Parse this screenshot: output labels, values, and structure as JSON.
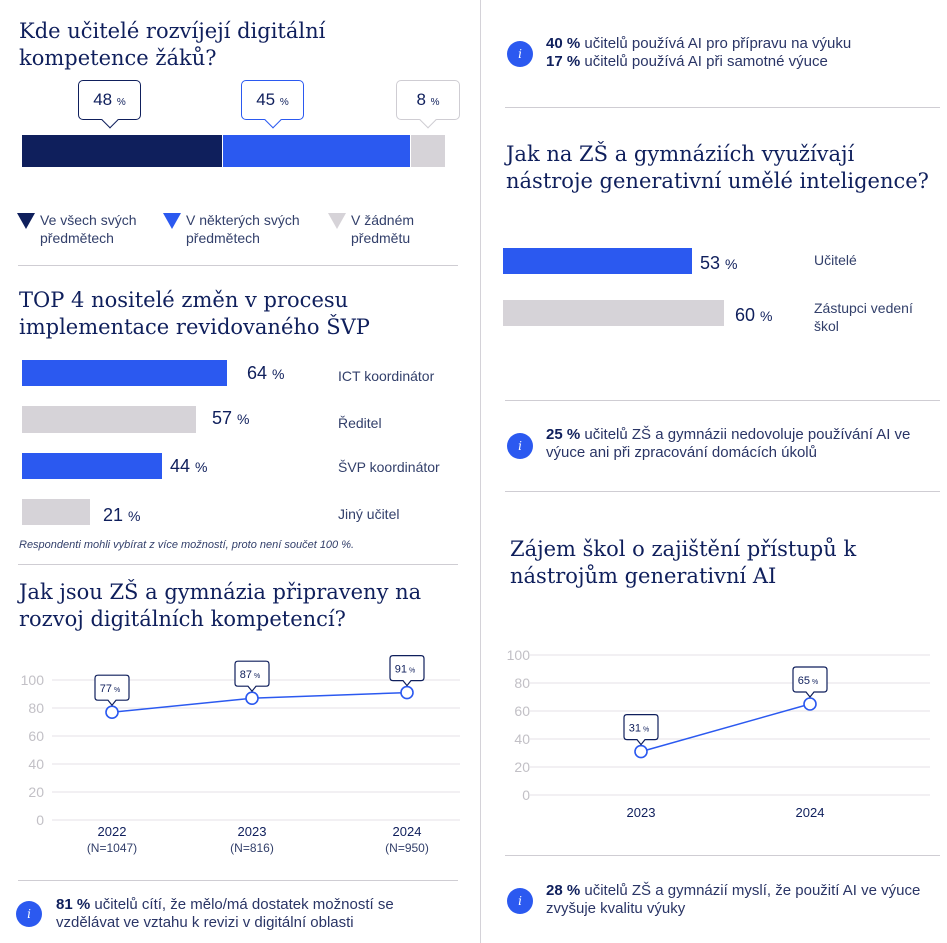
{
  "colors": {
    "navy": "#0f1f5c",
    "blue": "#2b59f0",
    "grey": "#d6d3d8",
    "axis": "#c8c6cc"
  },
  "s1": {
    "title": "Kde  učitelé rozvíjejí digitální kompetence žáků?",
    "values": [
      "48",
      "45",
      "8"
    ],
    "unit": "%",
    "legend": [
      "Ve všech svých předmětech",
      "V některých svých předmětech",
      "V žádném předmětu"
    ]
  },
  "s2": {
    "title": "TOP 4 nositelé změn v procesu implementace revidovaného ŠVP",
    "values": [
      "64",
      "57",
      "44",
      "21"
    ],
    "unit": "%",
    "labels": [
      "ICT koordinátor",
      "Ředitel",
      "ŠVP koordinátor",
      "Jiný učitel"
    ],
    "note": "Respondenti mohli vybírat z více možností, proto není součet 100 %."
  },
  "s3": {
    "title": "Jak jsou ZŠ a gymnázia připraveny na rozvoj digitálních kompetencí?",
    "yticks": [
      "100",
      "80",
      "60",
      "40",
      "20",
      "0"
    ],
    "years": [
      "2022",
      "2023",
      "2024"
    ],
    "ns": [
      "(N=1047)",
      "(N=816)",
      "(N=950)"
    ],
    "values": [
      "77",
      "87",
      "91"
    ],
    "unit": "%"
  },
  "info1": {
    "bold": "81 %",
    "text": " učitelů cítí, že mělo/má dostatek možností se vzdělávat ve vztahu k revizi v digitální oblasti"
  },
  "info2": {
    "line1_bold": "40 %",
    "line1": " učitelů používá AI pro přípravu na výuku",
    "line2_bold": "17 %",
    "line2": " učitelů používá AI při samotné výuce"
  },
  "s4": {
    "title": "Jak na ZŠ a gymnáziích využívají nástroje generativní umělé inteligence?",
    "values": [
      "53",
      "60"
    ],
    "unit": "%",
    "labels": [
      "Učitelé",
      "Zástupci vedení škol"
    ]
  },
  "info3": {
    "bold": "25 %",
    "text": " učitelů ZŠ a gymnázii nedovoluje používání AI ve výuce ani při zpracování domácích úkolů"
  },
  "s5": {
    "title": "Zájem škol o zajištění přístupů k nástrojům generativní AI",
    "yticks": [
      "100",
      "80",
      "60",
      "40",
      "20",
      "0"
    ],
    "years": [
      "2023",
      "2024"
    ],
    "values": [
      "31",
      "65"
    ],
    "unit": "%"
  },
  "info4": {
    "bold": "28 %",
    "text": " učitelů ZŠ a gymnázií myslí, že použití AI ve výuce zvyšuje kvalitu výuky"
  },
  "chart_data": [
    {
      "type": "bar",
      "title": "Kde  učitelé rozvíjejí digitální kompetence žáků?",
      "categories": [
        "Ve všech svých předmětech",
        "V některých svých předmětech",
        "V žádném předmětu"
      ],
      "values": [
        48,
        45,
        8
      ],
      "stacked": true
    },
    {
      "type": "bar",
      "title": "TOP 4 nositelé změn v procesu implementace revidovaného ŠVP",
      "categories": [
        "ICT koordinátor",
        "Ředitel",
        "ŠVP koordinátor",
        "Jiný učitel"
      ],
      "values": [
        64,
        57,
        44,
        21
      ],
      "orientation": "horizontal"
    },
    {
      "type": "line",
      "title": "Jak jsou ZŠ a gymnázia připraveny na rozvoj digitálních kompetencí?",
      "x": [
        "2022",
        "2023",
        "2024"
      ],
      "values": [
        77,
        87,
        91
      ],
      "ylim": [
        0,
        100
      ]
    },
    {
      "type": "bar",
      "title": "Jak na ZŠ a gymnáziích využívají nástroje generativní umělé inteligence?",
      "categories": [
        "Učitelé",
        "Zástupci vedení škol"
      ],
      "values": [
        53,
        60
      ],
      "orientation": "horizontal"
    },
    {
      "type": "line",
      "title": "Zájem škol o zajištění přístupů k nástrojům generativní AI",
      "x": [
        "2023",
        "2024"
      ],
      "values": [
        31,
        65
      ],
      "ylim": [
        0,
        100
      ]
    }
  ]
}
